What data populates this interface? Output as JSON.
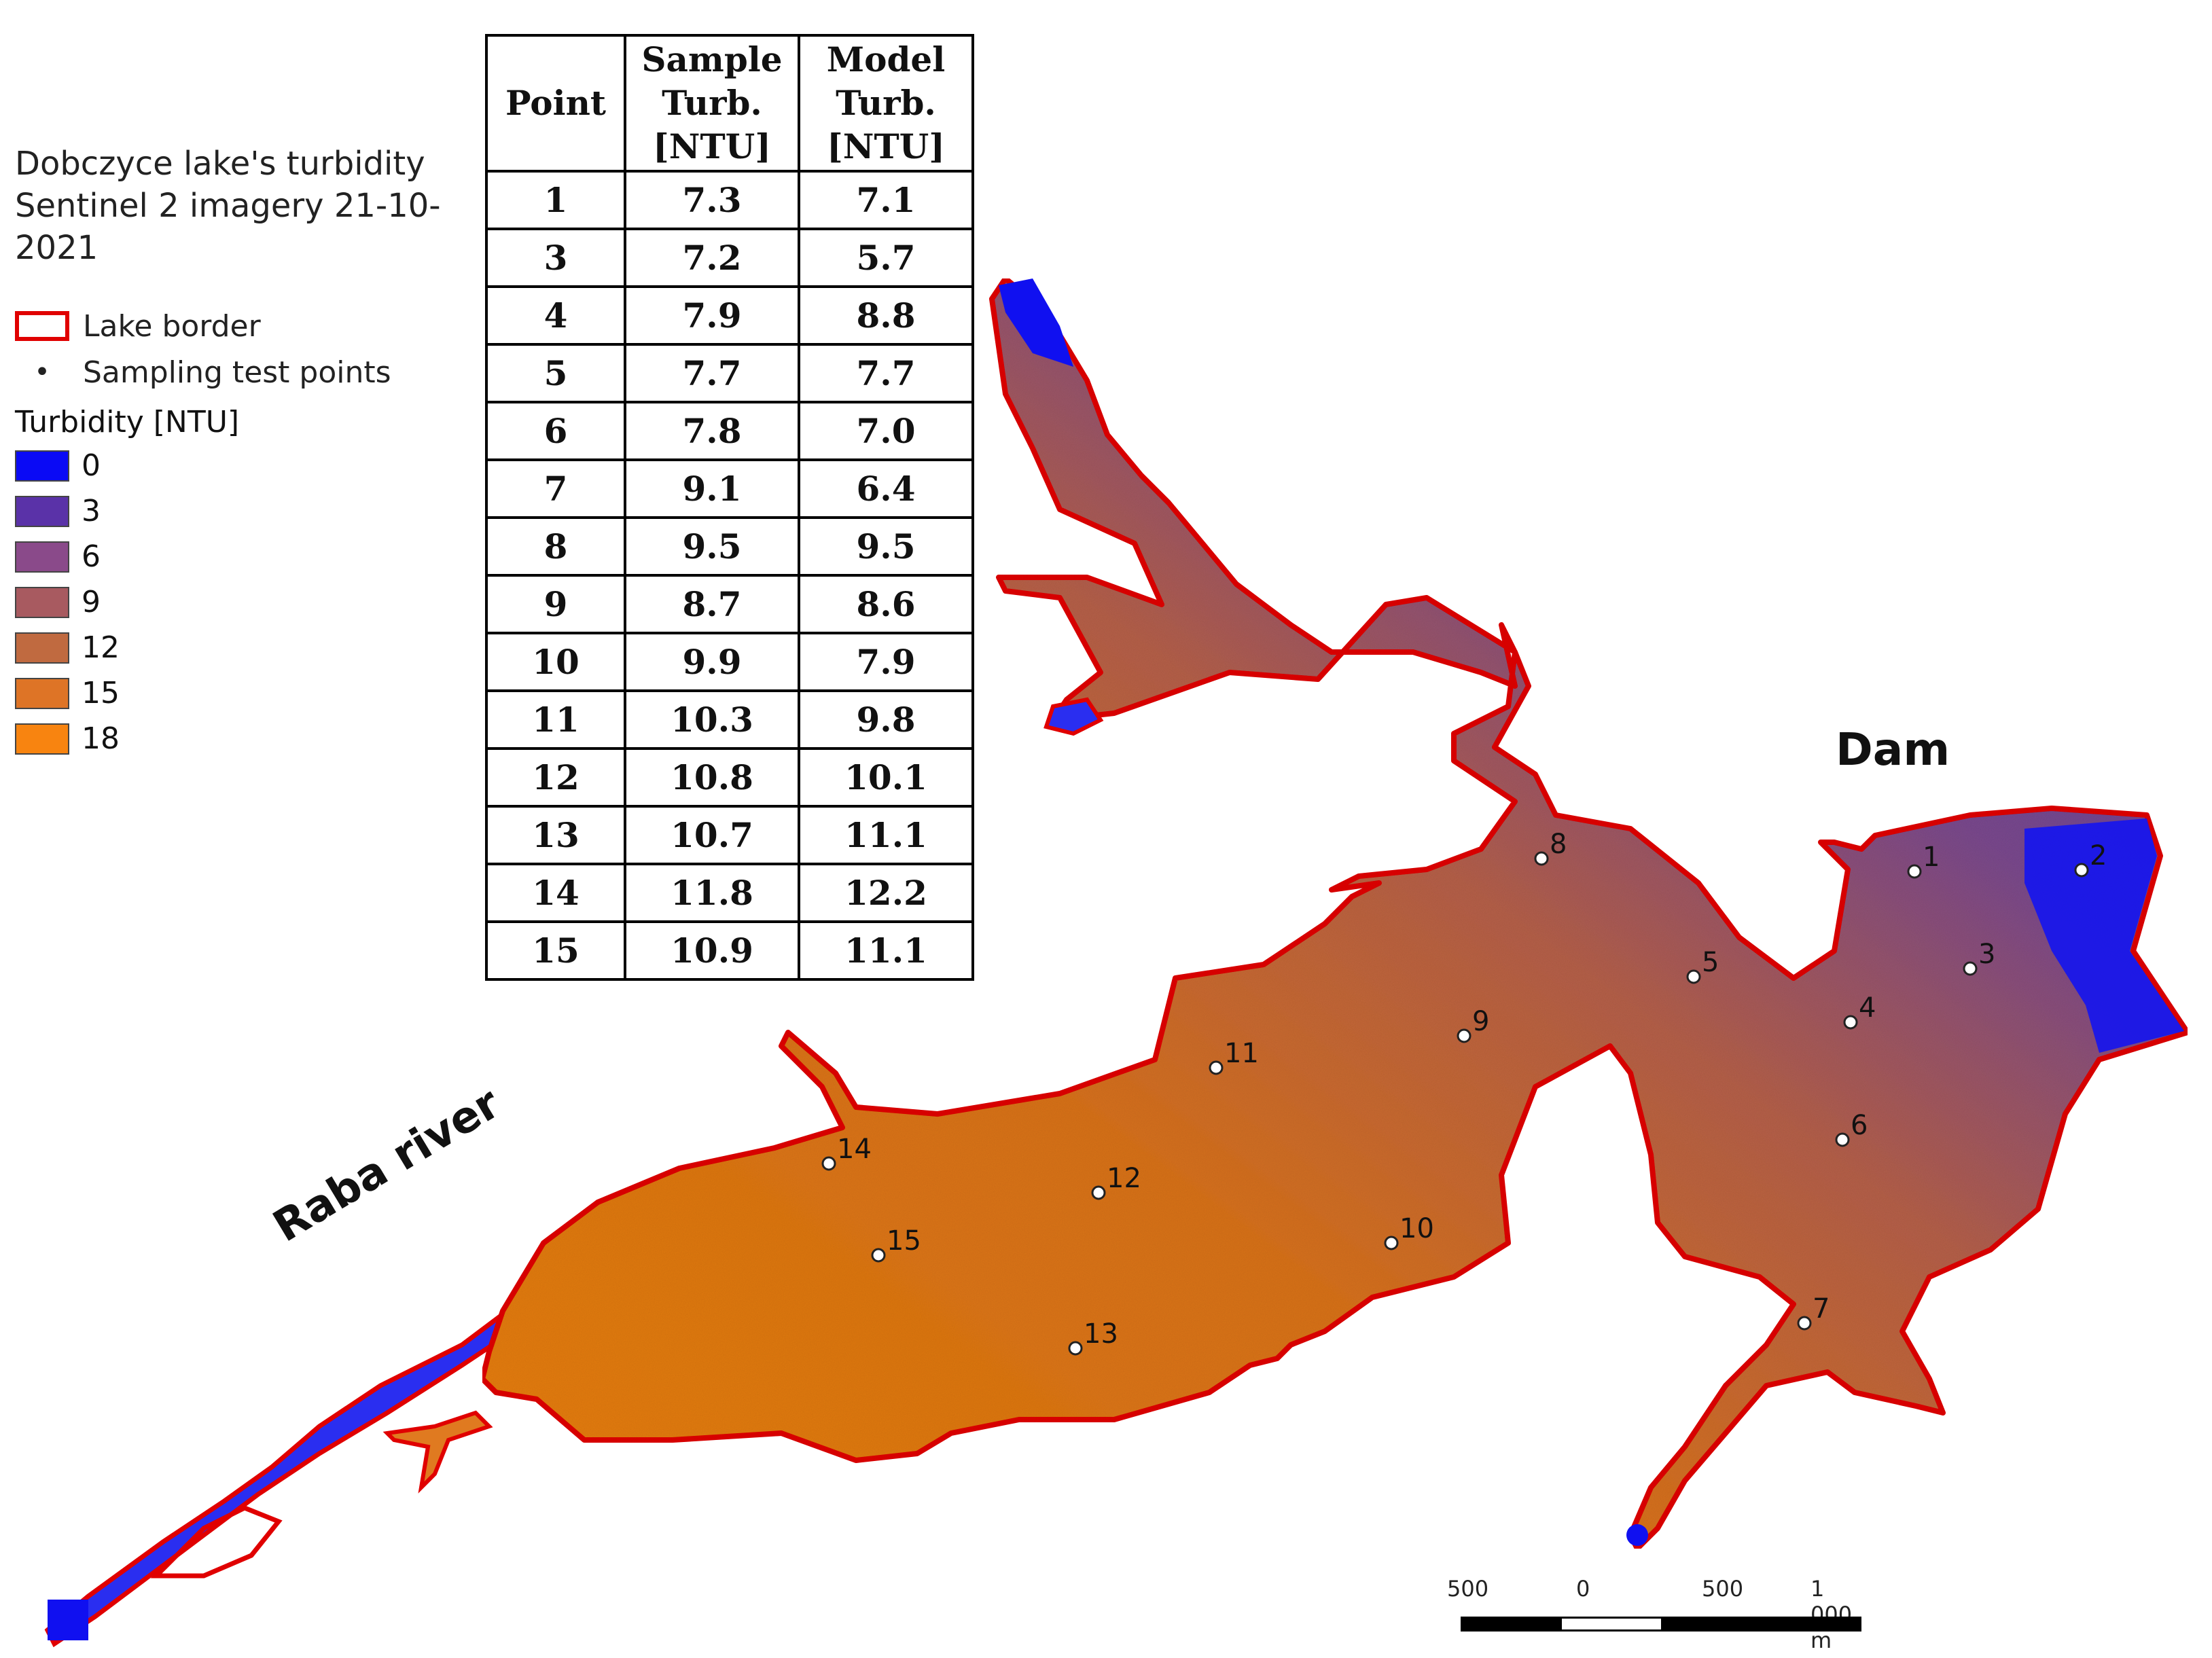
{
  "legend": {
    "title_line1": "Dobczyce lake's turbidity",
    "title_line2": "Sentinel 2 imagery 21-10-2021",
    "lake_border_label": "Lake border",
    "sampling_label": "Sampling test points",
    "sampling_symbol": "•",
    "turbidity_title": "Turbidity [NTU]",
    "classes": [
      {
        "label": "0",
        "color": "#0a0af5"
      },
      {
        "label": "3",
        "color": "#5a32a8"
      },
      {
        "label": "6",
        "color": "#8a4a8a"
      },
      {
        "label": "9",
        "color": "#a85a60"
      },
      {
        "label": "12",
        "color": "#c06a40"
      },
      {
        "label": "15",
        "color": "#de7426"
      },
      {
        "label": "18",
        "color": "#f88410"
      }
    ],
    "border_color": "#e00000"
  },
  "table": {
    "headers": {
      "point": "Point",
      "sample_line1": "Sample",
      "sample_line2": "Turb.",
      "sample_line3": "[NTU]",
      "model_line1": "Model",
      "model_line2": "Turb.",
      "model_line3": "[NTU]"
    },
    "rows": [
      {
        "point": "1",
        "sample": "7.3",
        "model": "7.1"
      },
      {
        "point": "3",
        "sample": "7.2",
        "model": "5.7"
      },
      {
        "point": "4",
        "sample": "7.9",
        "model": "8.8"
      },
      {
        "point": "5",
        "sample": "7.7",
        "model": "7.7"
      },
      {
        "point": "6",
        "sample": "7.8",
        "model": "7.0"
      },
      {
        "point": "7",
        "sample": "9.1",
        "model": "6.4"
      },
      {
        "point": "8",
        "sample": "9.5",
        "model": "9.5"
      },
      {
        "point": "9",
        "sample": "8.7",
        "model": "8.6"
      },
      {
        "point": "10",
        "sample": "9.9",
        "model": "7.9"
      },
      {
        "point": "11",
        "sample": "10.3",
        "model": "9.8"
      },
      {
        "point": "12",
        "sample": "10.8",
        "model": "10.1"
      },
      {
        "point": "13",
        "sample": "10.7",
        "model": "11.1"
      },
      {
        "point": "14",
        "sample": "11.8",
        "model": "12.2"
      },
      {
        "point": "15",
        "sample": "10.9",
        "model": "11.1"
      }
    ]
  },
  "labels": {
    "dam": "Dam",
    "raba": "Raba river"
  },
  "points": [
    "1",
    "2",
    "3",
    "4",
    "5",
    "6",
    "7",
    "8",
    "9",
    "10",
    "11",
    "12",
    "13",
    "14",
    "15"
  ],
  "scale_bar": {
    "labels": [
      "500",
      "0",
      "500",
      "1 000 m"
    ]
  }
}
